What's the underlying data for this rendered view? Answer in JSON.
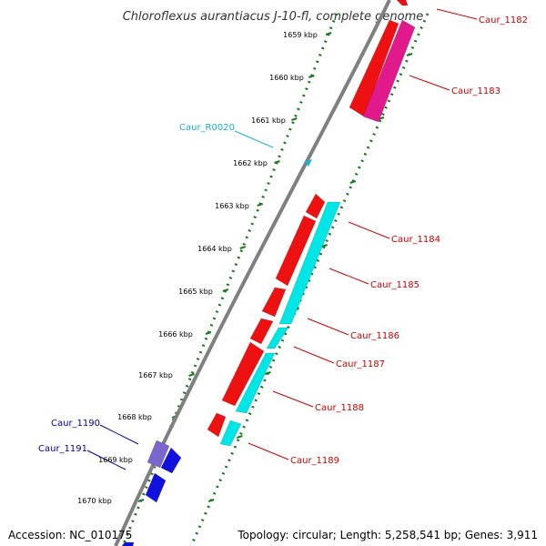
{
  "title": "Chloroflexus aurantiacus J-10-fl, complete genome",
  "footer": {
    "accession": "Accession: NC_010175",
    "summary": "Topology: circular; Length: 5,258,541 bp; Genes: 3,911"
  },
  "colors": {
    "backbone": "#808080",
    "tick_dots": "#1a7a1a",
    "forward_gene": "#ee1111",
    "reverse_gene": "#00e5e5",
    "rna_gene": "#e01a8a",
    "left_gene": "#1111dd",
    "left_gene_alt": "#7a66cc",
    "label_red": "#cc0000",
    "label_blue": "#0000aa",
    "label_cyan": "#1ab0d8"
  },
  "kbp_labels": [
    "1659 kbp",
    "1660 kbp",
    "1661 kbp",
    "1662 kbp",
    "1663 kbp",
    "1664 kbp",
    "1665 kbp",
    "1666 kbp",
    "1667 kbp",
    "1668 kbp",
    "1669 kbp",
    "1670 kbp"
  ],
  "gene_labels": [
    "Caur_1182",
    "Caur_1183",
    "Caur_R0020",
    "Caur_1184",
    "Caur_1185",
    "Caur_1186",
    "Caur_1187",
    "Caur_1188",
    "Caur_1189",
    "Caur_1190",
    "Caur_1191"
  ]
}
